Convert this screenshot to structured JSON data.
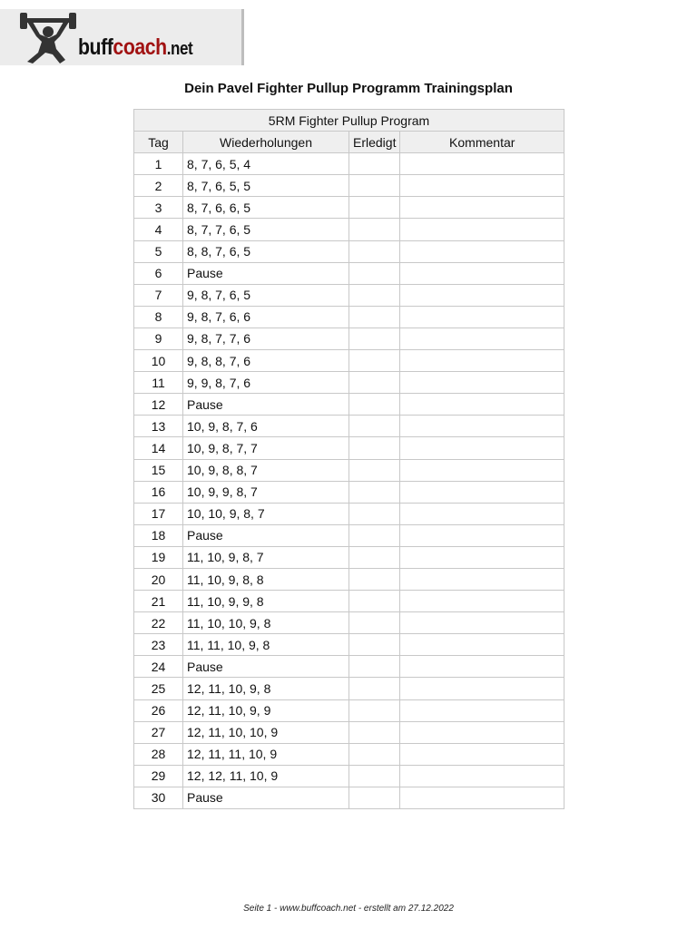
{
  "logo": {
    "text_a": "buff",
    "text_b": "coach",
    "text_c": ".net",
    "accent": "#a11212"
  },
  "title": "Dein Pavel Fighter Pullup Programm Trainingsplan",
  "table": {
    "caption": "5RM Fighter Pullup Program",
    "headers": [
      "Tag",
      "Wiederholungen",
      "Erledigt",
      "Kommentar"
    ],
    "rows": [
      [
        "1",
        "8, 7, 6, 5, 4"
      ],
      [
        "2",
        "8, 7, 6, 5, 5"
      ],
      [
        "3",
        "8, 7, 6, 6, 5"
      ],
      [
        "4",
        "8, 7, 7, 6, 5"
      ],
      [
        "5",
        "8, 8, 7, 6, 5"
      ],
      [
        "6",
        "Pause"
      ],
      [
        "7",
        "9, 8, 7, 6, 5"
      ],
      [
        "8",
        "9, 8, 7, 6, 6"
      ],
      [
        "9",
        "9, 8, 7, 7, 6"
      ],
      [
        "10",
        "9, 8, 8, 7, 6"
      ],
      [
        "11",
        "9, 9, 8, 7, 6"
      ],
      [
        "12",
        "Pause"
      ],
      [
        "13",
        "10, 9, 8, 7, 6"
      ],
      [
        "14",
        "10, 9, 8, 7, 7"
      ],
      [
        "15",
        "10, 9, 8, 8, 7"
      ],
      [
        "16",
        "10, 9, 9, 8, 7"
      ],
      [
        "17",
        "10, 10, 9, 8, 7"
      ],
      [
        "18",
        "Pause"
      ],
      [
        "19",
        "11, 10, 9, 8, 7"
      ],
      [
        "20",
        "11, 10, 9, 8, 8"
      ],
      [
        "21",
        "11, 10, 9, 9, 8"
      ],
      [
        "22",
        "11, 10, 10, 9, 8"
      ],
      [
        "23",
        "11, 11, 10, 9, 8"
      ],
      [
        "24",
        "Pause"
      ],
      [
        "25",
        "12, 11, 10, 9, 8"
      ],
      [
        "26",
        "12, 11, 10, 9, 9"
      ],
      [
        "27",
        "12, 11, 10, 10, 9"
      ],
      [
        "28",
        "12, 11, 11, 10, 9"
      ],
      [
        "29",
        "12, 12, 11, 10, 9"
      ],
      [
        "30",
        "Pause"
      ]
    ]
  },
  "footer": "Seite 1 - www.buffcoach.net - erstellt am 27.12.2022"
}
